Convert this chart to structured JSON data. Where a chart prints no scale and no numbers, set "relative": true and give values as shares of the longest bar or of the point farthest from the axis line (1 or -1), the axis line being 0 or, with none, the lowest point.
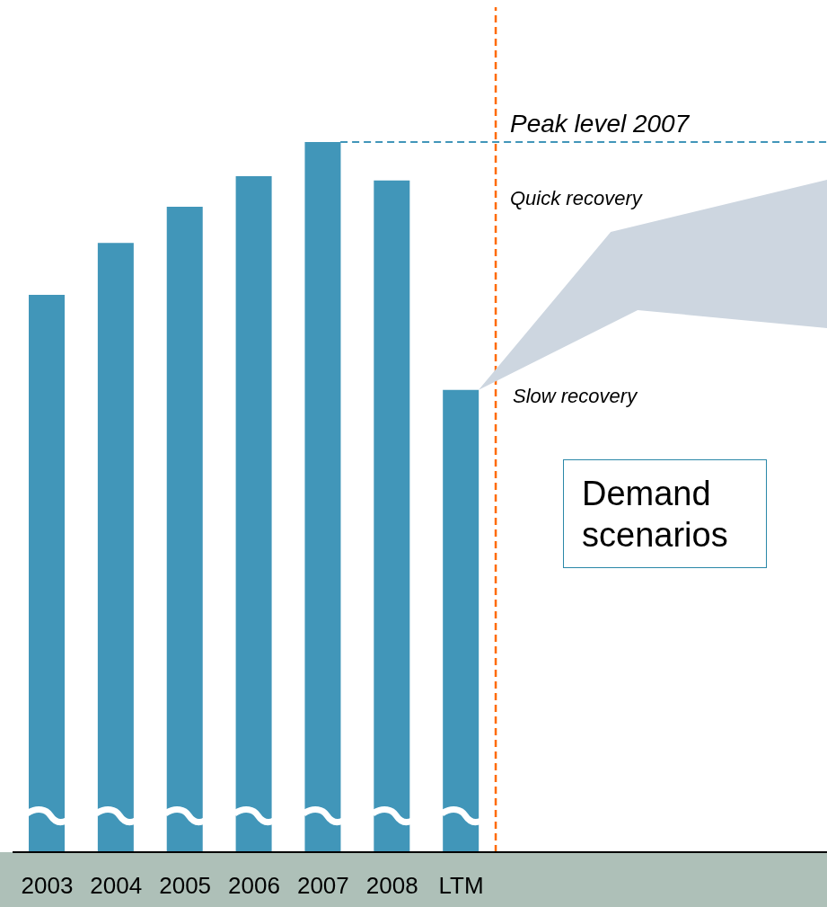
{
  "chart_data": {
    "type": "bar",
    "relative": true,
    "categories": [
      "2003",
      "2004",
      "2005",
      "2006",
      "2007",
      "2008",
      "LTM"
    ],
    "values": [
      0.785,
      0.858,
      0.909,
      0.952,
      1,
      0.946,
      0.651
    ],
    "color": "#4196b9",
    "ref_lines": [
      {
        "axis": "y",
        "value": 1,
        "label": "Peak level 2007",
        "color": "#4196b9",
        "line_style": "dashed"
      },
      {
        "axis": "x",
        "value": "LTM",
        "label": null,
        "color": "#ff6a00",
        "line_style": "dashed"
      }
    ],
    "annotations": [
      "Quick recovery",
      "Slow recovery",
      "Demand scenarios"
    ],
    "grid": false,
    "legend": false
  }
}
